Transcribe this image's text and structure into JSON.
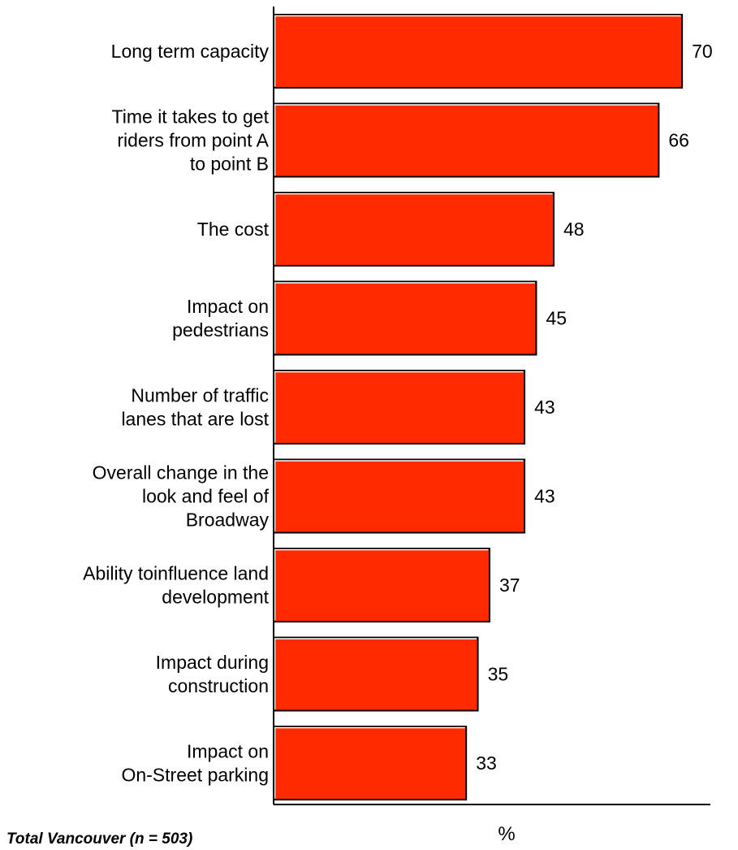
{
  "chart_data": {
    "type": "bar",
    "orientation": "horizontal",
    "categories": [
      [
        "Long term capacity"
      ],
      [
        "Time  it takes to get",
        "riders from point A",
        "to point B"
      ],
      [
        "The cost"
      ],
      [
        "Impact on",
        "pedestrians"
      ],
      [
        "Number of traffic",
        "lanes that are lost"
      ],
      [
        "Overall change in the",
        "look and feel of",
        "Broadway"
      ],
      [
        "Ability toinfluence land",
        "development"
      ],
      [
        "Impact during",
        "construction"
      ],
      [
        "Impact on",
        "On-Street parking"
      ]
    ],
    "values": [
      70,
      66,
      48,
      45,
      43,
      43,
      37,
      35,
      33
    ],
    "xlabel": "%",
    "xlim": [
      0,
      80
    ],
    "grid": false,
    "legend": "none",
    "colors": {
      "bar_fill": "#ff2a00",
      "bar_outline": "#000000",
      "bar_highlight": "#ffffff",
      "axis": "#000000"
    }
  },
  "footnote": "Total Vancouver (n = 503)"
}
